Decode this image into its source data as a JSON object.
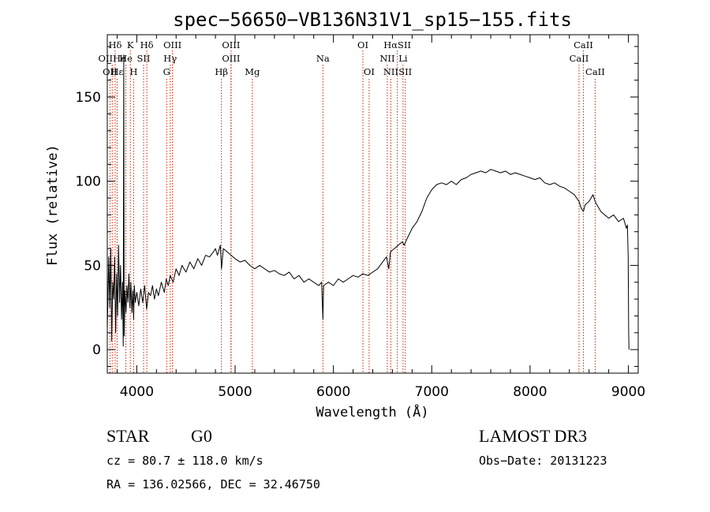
{
  "chart_data": {
    "type": "line",
    "title": "spec−56650−VB136N31V1_sp15−155.fits",
    "xlabel": "Wavelength (Å)",
    "ylabel": "Flux (relative)",
    "xlim": [
      3700,
      9100
    ],
    "ylim": [
      -14,
      187
    ],
    "xticks": [
      4000,
      5000,
      6000,
      7000,
      8000,
      9000
    ],
    "yticks": [
      0,
      50,
      100,
      150
    ],
    "series": [
      {
        "name": "flux",
        "points": [
          [
            3700,
            12
          ],
          [
            3715,
            55
          ],
          [
            3725,
            25
          ],
          [
            3735,
            60
          ],
          [
            3745,
            5
          ],
          [
            3755,
            40
          ],
          [
            3765,
            30
          ],
          [
            3775,
            55
          ],
          [
            3785,
            10
          ],
          [
            3795,
            45
          ],
          [
            3805,
            20
          ],
          [
            3815,
            62
          ],
          [
            3825,
            28
          ],
          [
            3835,
            50
          ],
          [
            3845,
            18
          ],
          [
            3855,
            40
          ],
          [
            3862,
            2
          ],
          [
            3868,
            175
          ],
          [
            3872,
            8
          ],
          [
            3880,
            35
          ],
          [
            3890,
            22
          ],
          [
            3900,
            38
          ],
          [
            3910,
            28
          ],
          [
            3920,
            45
          ],
          [
            3930,
            25
          ],
          [
            3940,
            40
          ],
          [
            3950,
            22
          ],
          [
            3960,
            35
          ],
          [
            3968,
            18
          ],
          [
            3975,
            38
          ],
          [
            3985,
            28
          ],
          [
            4000,
            34
          ],
          [
            4020,
            26
          ],
          [
            4040,
            36
          ],
          [
            4060,
            28
          ],
          [
            4080,
            38
          ],
          [
            4100,
            24
          ],
          [
            4120,
            34
          ],
          [
            4140,
            32
          ],
          [
            4160,
            38
          ],
          [
            4180,
            30
          ],
          [
            4200,
            36
          ],
          [
            4220,
            32
          ],
          [
            4250,
            40
          ],
          [
            4280,
            34
          ],
          [
            4300,
            42
          ],
          [
            4320,
            38
          ],
          [
            4340,
            44
          ],
          [
            4370,
            40
          ],
          [
            4400,
            48
          ],
          [
            4430,
            44
          ],
          [
            4460,
            50
          ],
          [
            4500,
            46
          ],
          [
            4540,
            52
          ],
          [
            4580,
            48
          ],
          [
            4620,
            54
          ],
          [
            4660,
            50
          ],
          [
            4700,
            56
          ],
          [
            4740,
            55
          ],
          [
            4780,
            58
          ],
          [
            4800,
            60
          ],
          [
            4820,
            56
          ],
          [
            4850,
            62
          ],
          [
            4862,
            48
          ],
          [
            4880,
            60
          ],
          [
            4920,
            58
          ],
          [
            4960,
            56
          ],
          [
            5000,
            54
          ],
          [
            5050,
            52
          ],
          [
            5100,
            53
          ],
          [
            5150,
            50
          ],
          [
            5200,
            48
          ],
          [
            5250,
            50
          ],
          [
            5300,
            48
          ],
          [
            5350,
            46
          ],
          [
            5400,
            47
          ],
          [
            5450,
            45
          ],
          [
            5500,
            44
          ],
          [
            5550,
            46
          ],
          [
            5600,
            42
          ],
          [
            5650,
            44
          ],
          [
            5700,
            40
          ],
          [
            5750,
            42
          ],
          [
            5800,
            40
          ],
          [
            5850,
            38
          ],
          [
            5880,
            40
          ],
          [
            5893,
            18
          ],
          [
            5900,
            38
          ],
          [
            5950,
            40
          ],
          [
            6000,
            38
          ],
          [
            6050,
            42
          ],
          [
            6100,
            40
          ],
          [
            6150,
            42
          ],
          [
            6200,
            44
          ],
          [
            6250,
            43
          ],
          [
            6300,
            45
          ],
          [
            6350,
            44
          ],
          [
            6400,
            46
          ],
          [
            6450,
            48
          ],
          [
            6500,
            52
          ],
          [
            6540,
            55
          ],
          [
            6563,
            48
          ],
          [
            6580,
            58
          ],
          [
            6620,
            60
          ],
          [
            6660,
            62
          ],
          [
            6700,
            64
          ],
          [
            6720,
            62
          ],
          [
            6750,
            66
          ],
          [
            6800,
            72
          ],
          [
            6850,
            76
          ],
          [
            6900,
            82
          ],
          [
            6950,
            90
          ],
          [
            7000,
            95
          ],
          [
            7050,
            98
          ],
          [
            7100,
            99
          ],
          [
            7150,
            98
          ],
          [
            7200,
            100
          ],
          [
            7250,
            98
          ],
          [
            7300,
            101
          ],
          [
            7350,
            102
          ],
          [
            7400,
            104
          ],
          [
            7450,
            105
          ],
          [
            7500,
            106
          ],
          [
            7550,
            105
          ],
          [
            7600,
            107
          ],
          [
            7650,
            106
          ],
          [
            7700,
            105
          ],
          [
            7750,
            106
          ],
          [
            7800,
            104
          ],
          [
            7850,
            105
          ],
          [
            7900,
            104
          ],
          [
            7950,
            103
          ],
          [
            8000,
            102
          ],
          [
            8050,
            101
          ],
          [
            8100,
            102
          ],
          [
            8150,
            99
          ],
          [
            8200,
            98
          ],
          [
            8250,
            99
          ],
          [
            8300,
            97
          ],
          [
            8350,
            96
          ],
          [
            8400,
            94
          ],
          [
            8450,
            92
          ],
          [
            8498,
            88
          ],
          [
            8520,
            84
          ],
          [
            8542,
            82
          ],
          [
            8560,
            86
          ],
          [
            8600,
            88
          ],
          [
            8640,
            92
          ],
          [
            8662,
            88
          ],
          [
            8680,
            86
          ],
          [
            8720,
            82
          ],
          [
            8760,
            80
          ],
          [
            8800,
            78
          ],
          [
            8850,
            80
          ],
          [
            8900,
            76
          ],
          [
            8950,
            78
          ],
          [
            8980,
            72
          ],
          [
            8990,
            74
          ],
          [
            8998,
            55
          ],
          [
            9003,
            10
          ],
          [
            9006,
            0
          ]
        ]
      }
    ],
    "lines_top": [
      {
        "label": "Hδ",
        "wave": 3780
      },
      {
        "label": "K",
        "wave": 3934
      },
      {
        "label": "Hδ",
        "wave": 4102
      },
      {
        "label": "OIII",
        "wave": 4363
      },
      {
        "label": "OIII",
        "wave": 4959
      },
      {
        "label": "OI",
        "wave": 6300
      },
      {
        "label": "HαSII",
        "wave": 6650
      },
      {
        "label": "CaII",
        "wave": 8542
      }
    ],
    "lines_mid": [
      {
        "label": "OIIHe",
        "wave": 3750
      },
      {
        "label": "He",
        "wave": 3889
      },
      {
        "label": "SII",
        "wave": 4069
      },
      {
        "label": "Hγ",
        "wave": 4340
      },
      {
        "label": "OIII",
        "wave": 4959
      },
      {
        "label": "Na",
        "wave": 5893
      },
      {
        "label": "NII",
        "wave": 6548
      },
      {
        "label": "Li",
        "wave": 6708
      },
      {
        "label": "CaII",
        "wave": 8498
      }
    ],
    "lines_low": [
      {
        "label": "OII",
        "wave": 3727
      },
      {
        "label": "Hε",
        "wave": 3800
      },
      {
        "label": "H",
        "wave": 3968
      },
      {
        "label": "G",
        "wave": 4304
      },
      {
        "label": "Hβ",
        "wave": 4861
      },
      {
        "label": "Mg",
        "wave": 5175
      },
      {
        "label": "OI",
        "wave": 6363
      },
      {
        "label": "NII",
        "wave": 6584
      },
      {
        "label": "SII",
        "wave": 6731
      },
      {
        "label": "CaII",
        "wave": 8662
      }
    ],
    "line_color": "#cc2200"
  },
  "info": {
    "class": "STAR",
    "subclass": "G0",
    "survey": "LAMOST DR3",
    "cz": "cz = 80.7 ± 118.0 km/s",
    "obs_date": "Obs−Date: 20131223",
    "coords": "RA = 136.02566, DEC =  32.46750"
  }
}
